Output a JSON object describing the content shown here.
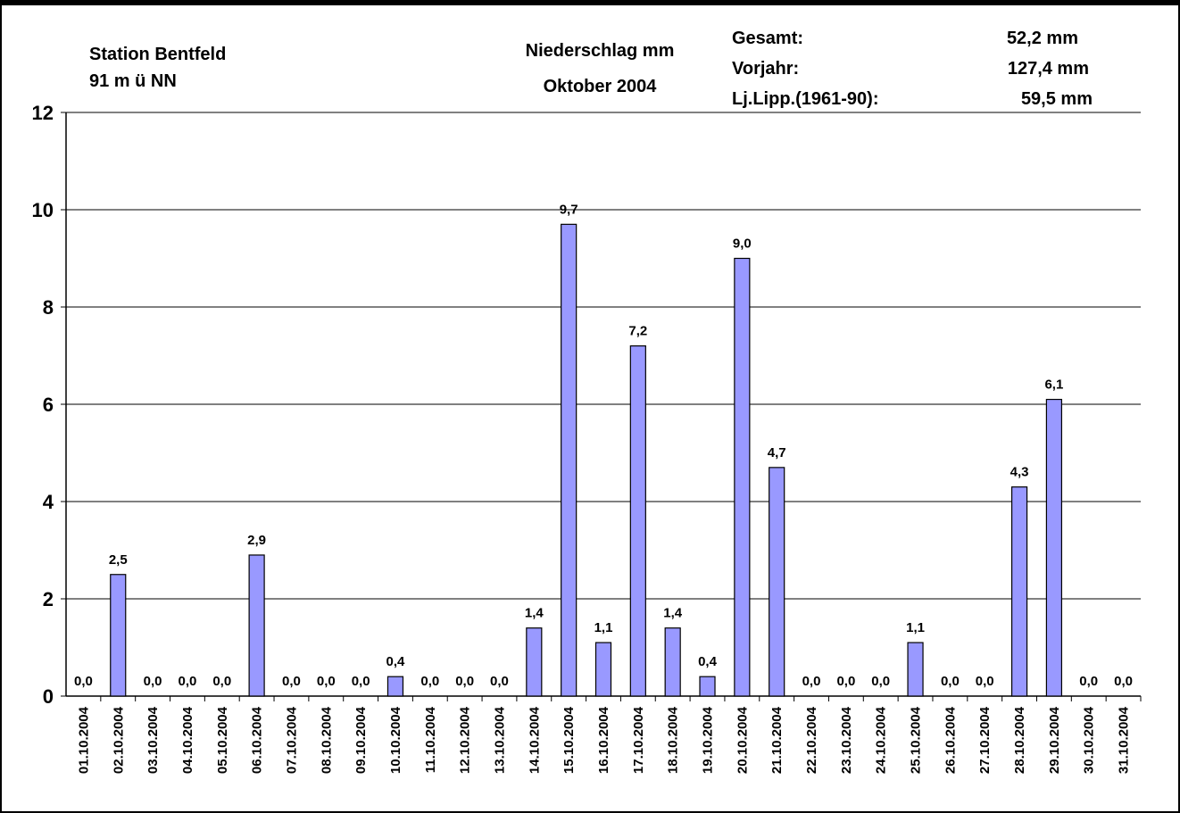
{
  "header": {
    "station_name": "Station Bentfeld",
    "station_height": "91 m ü NN",
    "title_line1": "Niederschlag mm",
    "title_line2": "Oktober 2004",
    "stats": [
      {
        "label": "Gesamt:",
        "value": "52,2 mm"
      },
      {
        "label": "Vorjahr:",
        "value": "127,4 mm"
      },
      {
        "label": "Lj.Lipp.(1961-90):",
        "value": "59,5 mm"
      }
    ]
  },
  "colors": {
    "bar_fill": "#9999FF",
    "bar_stroke": "#000000",
    "grid": "#000000",
    "background": "#FFFFFF"
  },
  "chart_data": {
    "type": "bar",
    "title": "Niederschlag mm",
    "subtitle": "Oktober 2004",
    "xlabel": "",
    "ylabel": "",
    "ylim": [
      0,
      12
    ],
    "yticks": [
      0,
      2,
      4,
      6,
      8,
      10,
      12
    ],
    "grid": true,
    "legend": "none",
    "categories": [
      "01.10.2004",
      "02.10.2004",
      "03.10.2004",
      "04.10.2004",
      "05.10.2004",
      "06.10.2004",
      "07.10.2004",
      "08.10.2004",
      "09.10.2004",
      "10.10.2004",
      "11.10.2004",
      "12.10.2004",
      "13.10.2004",
      "14.10.2004",
      "15.10.2004",
      "16.10.2004",
      "17.10.2004",
      "18.10.2004",
      "19.10.2004",
      "20.10.2004",
      "21.10.2004",
      "22.10.2004",
      "23.10.2004",
      "24.10.2004",
      "25.10.2004",
      "26.10.2004",
      "27.10.2004",
      "28.10.2004",
      "29.10.2004",
      "30.10.2004",
      "31.10.2004"
    ],
    "values": [
      0.0,
      2.5,
      0.0,
      0.0,
      0.0,
      2.9,
      0.0,
      0.0,
      0.0,
      0.4,
      0.0,
      0.0,
      0.0,
      1.4,
      9.7,
      1.1,
      7.2,
      1.4,
      0.4,
      9.0,
      4.7,
      0.0,
      0.0,
      0.0,
      1.1,
      0.0,
      0.0,
      4.3,
      6.1,
      0.0,
      0.0
    ],
    "data_labels": [
      "0,0",
      "2,5",
      "0,0",
      "0,0",
      "0,0",
      "2,9",
      "0,0",
      "0,0",
      "0,0",
      "0,4",
      "0,0",
      "0,0",
      "0,0",
      "1,4",
      "9,7",
      "1,1",
      "7,2",
      "1,4",
      "0,4",
      "9,0",
      "4,7",
      "0,0",
      "0,0",
      "0,0",
      "1,1",
      "0,0",
      "0,0",
      "4,3",
      "6,1",
      "0,0",
      "0,0"
    ]
  }
}
